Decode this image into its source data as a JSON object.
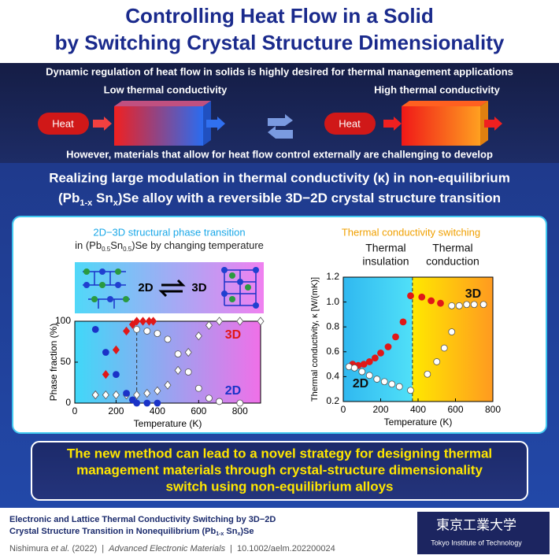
{
  "header": {
    "title_lines": [
      "Controlling Heat Flow in a Solid",
      "by Switching Crystal Structure Dimensionality"
    ]
  },
  "banner": {
    "top_text": "Dynamic regulation of heat flow in solids is highly desired for thermal management applications",
    "low_label": "Low thermal conductivity",
    "high_label": "High thermal conductivity",
    "heat_left": "Heat",
    "heat_right": "Heat",
    "bottom_text": "However, materials that allow for heat flow control externally are challenging to develop"
  },
  "heading": {
    "line1": "Realizing large modulation in thermal conductivity (κ) in non-equilibrium",
    "line2_parts": [
      "(Pb",
      "1-x",
      " Sn",
      "x",
      ")Se alloy with a reversible 3D−2D crystal structure transition"
    ]
  },
  "chart_data": [
    {
      "type": "scatter",
      "title": "2D−3D structural phase transition",
      "subtitle_parts": [
        "in (Pb",
        "0.5",
        "Sn",
        "0.5",
        ")Se by changing temperature"
      ],
      "inset_labels": [
        "2D",
        "3D"
      ],
      "x_label": "Temperature (K)",
      "y_label": "Phase fraction (%)",
      "xlim": [
        0,
        900
      ],
      "ylim": [
        0,
        100
      ],
      "xticks": [
        0,
        200,
        400,
        600,
        800
      ],
      "yticks": [
        0,
        50,
        100
      ],
      "divider_x": 300,
      "labels": [
        "3D",
        "2D"
      ],
      "series": [
        {
          "color": "#e01818",
          "marker": "diamond",
          "filled": true,
          "x": [
            100,
            150,
            200,
            250,
            280,
            300,
            330,
            360,
            380
          ],
          "values": [
            10,
            35,
            65,
            88,
            96,
            100,
            100,
            100,
            100
          ]
        },
        {
          "color": "#e01818",
          "marker": "diamond",
          "filled": false,
          "x": [
            100,
            150,
            200,
            250,
            300,
            350,
            400,
            450,
            500,
            550,
            600,
            650,
            700,
            800,
            900
          ],
          "values": [
            10,
            10,
            10,
            10,
            10,
            12,
            15,
            22,
            40,
            62,
            82,
            95,
            100,
            100,
            100
          ]
        },
        {
          "color": "#1a33c8",
          "marker": "circle",
          "filled": true,
          "x": [
            100,
            150,
            200,
            250,
            280,
            300,
            350,
            400
          ],
          "values": [
            90,
            62,
            35,
            12,
            4,
            0,
            0,
            0
          ]
        },
        {
          "color": "#1a33c8",
          "marker": "circle",
          "filled": false,
          "x": [
            300,
            350,
            400,
            450,
            500,
            550,
            600,
            650,
            700,
            800
          ],
          "values": [
            90,
            88,
            85,
            78,
            60,
            38,
            18,
            6,
            2,
            0
          ]
        }
      ]
    },
    {
      "type": "scatter",
      "title": "Thermal conductivity switching",
      "region_labels": [
        [
          "Thermal",
          "insulation"
        ],
        [
          "Thermal",
          "conduction"
        ]
      ],
      "x_label": "Temperature (K)",
      "y_label": "Thermal conductivity, κ  [W/(mK)]",
      "xlim": [
        0,
        800
      ],
      "ylim": [
        0.2,
        1.2
      ],
      "xticks": [
        0,
        200,
        400,
        600,
        800
      ],
      "yticks": [
        0.2,
        0.4,
        0.6,
        0.8,
        {
          "value": 1,
          "label": "1.0"
        },
        1.2
      ],
      "divider_x": 370,
      "labels": [
        "3D",
        "2D"
      ],
      "series": [
        {
          "color": "#e01818",
          "marker": "circle",
          "filled": true,
          "x": [
            50,
            80,
            110,
            140,
            170,
            200,
            240,
            280,
            320,
            360,
            420,
            470,
            520
          ],
          "values": [
            0.5,
            0.49,
            0.5,
            0.52,
            0.55,
            0.59,
            0.64,
            0.72,
            0.84,
            1.05,
            1.04,
            1.01,
            0.99
          ]
        },
        {
          "color": "#e01818",
          "marker": "circle",
          "filled": false,
          "x": [
            580,
            620,
            660,
            700,
            750
          ],
          "values": [
            0.97,
            0.97,
            0.98,
            0.98,
            0.98
          ]
        },
        {
          "color": "#222222",
          "marker": "circle",
          "filled": false,
          "x": [
            30,
            60,
            100,
            140,
            180,
            220,
            260,
            300,
            360,
            450,
            500,
            540,
            580
          ],
          "values": [
            0.48,
            0.47,
            0.44,
            0.41,
            0.38,
            0.36,
            0.34,
            0.32,
            0.29,
            0.42,
            0.52,
            0.63,
            0.76
          ]
        }
      ]
    }
  ],
  "conclusion": {
    "lines": [
      "The new method can lead to a novel strategy for designing thermal",
      "management materials through crystal-structure dimensionality",
      "switch using non-equilibrium alloys"
    ]
  },
  "footer": {
    "paper_line1": "Electronic and Lattice Thermal Conductivity Switching by 3D−2D",
    "paper_line2_parts": [
      "Crystal Structure Transition in Nonequilibrium (Pb",
      "1-x",
      " Sn",
      "x",
      ")Se"
    ],
    "author": "Nishimura ",
    "etal": "et al.",
    "year": " (2022)",
    "separator": "|",
    "journal": "Advanced Electronic Materials",
    "doi": "10.1002/aelm.202200024",
    "logo_jp": "東京工業大学",
    "logo_en": "Tokyo Institute of Technology"
  }
}
